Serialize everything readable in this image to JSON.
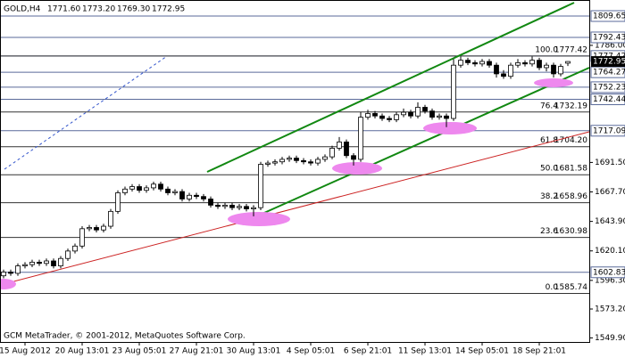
{
  "chart_data": {
    "type": "candlestick",
    "symbol": "GOLD,H4",
    "ohlc_label": [
      "1771.60",
      "1773.20",
      "1769.30",
      "1772.95"
    ],
    "footer": "GCM MetaTrader, © 2001-2012, MetaQuotes Software Corp.",
    "categories": [
      null,
      null,
      null,
      "15 Aug 2012",
      null,
      null,
      null,
      null,
      null,
      null,
      null,
      "20 Aug 13:01",
      null,
      null,
      null,
      null,
      null,
      null,
      null,
      "23 Aug 05:01",
      null,
      null,
      null,
      null,
      null,
      null,
      null,
      "27 Aug 21:01",
      null,
      null,
      null,
      null,
      null,
      null,
      null,
      "30 Aug 13:01",
      null,
      null,
      null,
      null,
      null,
      null,
      null,
      "4 Sep 05:01",
      null,
      null,
      null,
      null,
      null,
      null,
      null,
      "6 Sep 21:01",
      null,
      null,
      null,
      null,
      null,
      null,
      null,
      "11 Sep 13:01",
      null,
      null,
      null,
      null,
      null,
      null,
      null,
      "14 Sep 05:01",
      null,
      null,
      null,
      null,
      null,
      null,
      null,
      "18 Sep 21:01",
      null,
      null,
      null,
      null
    ],
    "open": [
      1600,
      1603,
      1602,
      1608,
      1609,
      1611,
      1610,
      1612,
      1608,
      1614,
      1620,
      1624,
      1638,
      1639,
      1637,
      1640,
      1652,
      1667,
      1670,
      1672,
      1669,
      1671,
      1674,
      1670,
      1667,
      1668,
      1662,
      1665,
      1664,
      1662,
      1657,
      1656,
      1657,
      1655,
      1656,
      1654,
      1655,
      1690,
      1691,
      1692,
      1694,
      1695,
      1693,
      1692,
      1691,
      1694,
      1696,
      1703,
      1708,
      1697,
      1694,
      1728,
      1731,
      1729,
      1727,
      1726,
      1730,
      1732,
      1729,
      1736,
      1733,
      1728,
      1729,
      1727,
      1770,
      1774,
      1772,
      1771,
      1773,
      1770,
      1763,
      1761,
      1770,
      1772,
      1771,
      1774,
      1768,
      1770,
      1763,
      1771.6
    ],
    "high": [
      1605,
      1605,
      1610,
      1611,
      1613,
      1613,
      1614,
      1614,
      1616,
      1622,
      1626,
      1640,
      1641,
      1641,
      1642,
      1654,
      1669,
      1672,
      1674,
      1674,
      1673,
      1676,
      1676,
      1672,
      1670,
      1670,
      1667,
      1667,
      1666,
      1664,
      1659,
      1659,
      1659,
      1658,
      1658,
      1657,
      1692,
      1693,
      1694,
      1696,
      1697,
      1697,
      1695,
      1694,
      1696,
      1698,
      1705,
      1712,
      1710,
      1699,
      1732,
      1734,
      1733,
      1731,
      1729,
      1732,
      1735,
      1734,
      1740,
      1738,
      1735,
      1731,
      1731,
      1775,
      1777,
      1776,
      1774,
      1775,
      1775,
      1772,
      1766,
      1772,
      1775,
      1774,
      1777,
      1776,
      1772,
      1772,
      1771,
      1773.2
    ],
    "low": [
      1598,
      1600,
      1600,
      1606,
      1607,
      1608,
      1608,
      1606,
      1606,
      1612,
      1618,
      1622,
      1636,
      1635,
      1635,
      1638,
      1650,
      1665,
      1668,
      1667,
      1667,
      1669,
      1668,
      1665,
      1665,
      1660,
      1660,
      1662,
      1660,
      1655,
      1654,
      1654,
      1653,
      1653,
      1652,
      1648,
      1653,
      1688,
      1689,
      1690,
      1692,
      1691,
      1690,
      1689,
      1689,
      1692,
      1694,
      1701,
      1695,
      1689,
      1692,
      1726,
      1727,
      1725,
      1724,
      1724,
      1728,
      1727,
      1727,
      1731,
      1726,
      1726,
      1720,
      1725,
      1768,
      1770,
      1769,
      1769,
      1768,
      1760,
      1759,
      1759,
      1768,
      1769,
      1769,
      1766,
      1765,
      1760,
      1761,
      1769.3
    ],
    "close": [
      1603,
      1602,
      1608,
      1609,
      1611,
      1610,
      1612,
      1608,
      1614,
      1620,
      1624,
      1638,
      1639,
      1637,
      1640,
      1652,
      1667,
      1670,
      1672,
      1669,
      1671,
      1674,
      1670,
      1667,
      1668,
      1662,
      1665,
      1664,
      1662,
      1657,
      1656,
      1657,
      1655,
      1656,
      1654,
      1655,
      1690,
      1691,
      1692,
      1694,
      1695,
      1693,
      1692,
      1691,
      1694,
      1696,
      1703,
      1708,
      1697,
      1694,
      1728,
      1731,
      1729,
      1727,
      1726,
      1730,
      1732,
      1729,
      1736,
      1733,
      1728,
      1729,
      1727,
      1770,
      1774,
      1772,
      1771,
      1773,
      1770,
      1763,
      1761,
      1770,
      1772,
      1771,
      1774,
      1768,
      1770,
      1763,
      1769,
      1772.95
    ],
    "current_price": {
      "value": 1772.95,
      "label": "1772.95"
    },
    "ylim": [
      1546.6,
      1822.6
    ],
    "yticks": [
      {
        "value": 1786.0,
        "label": "1786.00"
      },
      {
        "value": 1691.5,
        "label": "1691.50"
      },
      {
        "value": 1667.7,
        "label": "1667.70"
      },
      {
        "value": 1643.9,
        "label": "1643.90"
      },
      {
        "value": 1620.1,
        "label": "1620.10"
      },
      {
        "value": 1596.3,
        "label": "1596.30"
      },
      {
        "value": 1573.2,
        "label": "1573.20"
      },
      {
        "value": 1549.9,
        "label": "1549.90"
      }
    ],
    "levels": [
      {
        "value": 1809.65,
        "label": "1809.65"
      },
      {
        "value": 1792.43,
        "label": "1792.43"
      },
      {
        "value": 1777.42,
        "label": "1777.42"
      },
      {
        "value": 1764.27,
        "label": "1764.27"
      },
      {
        "value": 1752.23,
        "label": "1752.23"
      },
      {
        "value": 1742.44,
        "label": "1742.44"
      },
      {
        "value": 1717.09,
        "label": "1717.09"
      },
      {
        "value": 1602.83,
        "label": "1602.83"
      }
    ],
    "fib_levels": [
      {
        "ratio": "100.0",
        "value": 1777.42,
        "label": "1777.42"
      },
      {
        "ratio": "76.4",
        "value": 1732.19,
        "label": "1732.19"
      },
      {
        "ratio": "61.8",
        "value": 1704.2,
        "label": "1704.20"
      },
      {
        "ratio": "50.0",
        "value": 1681.58,
        "label": "1681.58"
      },
      {
        "ratio": "38.2",
        "value": 1658.96,
        "label": "1658.96"
      },
      {
        "ratio": "23.6",
        "value": 1630.98,
        "label": "1630.98"
      },
      {
        "ratio": "0.0",
        "value": 1585.74,
        "label": "1585.74"
      }
    ]
  }
}
